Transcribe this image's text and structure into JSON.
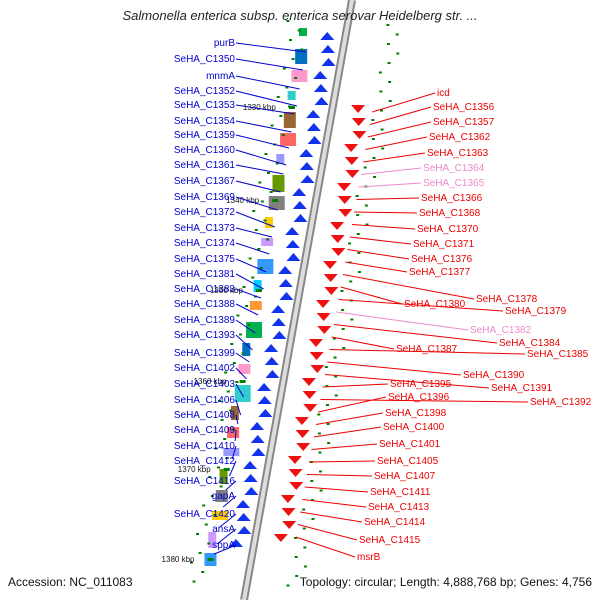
{
  "title": "Salmonella enterica subsp. enterica serovar Heidelberg str. ...",
  "footer": {
    "accession": "Accession: NC_011083",
    "topology": "Topology: circular; Length: 4,888,768 bp; Genes: 4,756"
  },
  "colors": {
    "forward": "#0000cc",
    "reverse": "#ee0000",
    "pseudo": "#ee88cc",
    "tick": "#008000"
  },
  "kbp_marks": [
    "1330 kbp",
    "1340 kbp",
    "1350 kbp",
    "1360 kbp",
    "1370 kbp",
    "1380 kbp"
  ],
  "left_labels": [
    "purB",
    "SeHA_C1350",
    "mnmA",
    "SeHA_C1352",
    "SeHA_C1353",
    "SeHA_C1354",
    "SeHA_C1359",
    "SeHA_C1360",
    "SeHA_C1361",
    "SeHA_C1367",
    "SeHA_C1369",
    "SeHA_C1372",
    "SeHA_C1373",
    "SeHA_C1374",
    "SeHA_C1375",
    "SeHA_C1381",
    "SeHA_C1383",
    "SeHA_C1388",
    "SeHA_C1389",
    "SeHA_C1393",
    "SeHA_C1399",
    "SeHA_C1402",
    "SeHA_C1403",
    "SeHA_C1406",
    "SeHA_C1408",
    "SeHA_C1409",
    "SeHA_C1410",
    "SeHA_C1412",
    "SeHA_C1416",
    "gapA",
    "SeHA_C1420",
    "ansA",
    "sppA"
  ],
  "right_labels": [
    "icd",
    "SeHA_C1356",
    "SeHA_C1357",
    "SeHA_C1362",
    "SeHA_C1363",
    "SeHA_C1364",
    "SeHA_C1365",
    "SeHA_C1366",
    "SeHA_C1368",
    "SeHA_C1370",
    "SeHA_C1371",
    "SeHA_C1376",
    "SeHA_C1377",
    "SeHA_C1378",
    "SeHA_C1380",
    "SeHA_C1379",
    "SeHA_C1382",
    "SeHA_C1384",
    "SeHA_C1387",
    "SeHA_C1385",
    "SeHA_C1390",
    "SeHA_C1391",
    "SeHA_C1395",
    "SeHA_C1392",
    "SeHA_C1396",
    "SeHA_C1398",
    "SeHA_C1400",
    "SeHA_C1401",
    "SeHA_C1405",
    "SeHA_C1407",
    "SeHA_C1411",
    "SeHA_C1413",
    "SeHA_C1414",
    "SeHA_C1415",
    "msrB"
  ],
  "pseudo_labels": [
    "SeHA_C1364",
    "SeHA_C1365",
    "SeHA_C1382"
  ]
}
